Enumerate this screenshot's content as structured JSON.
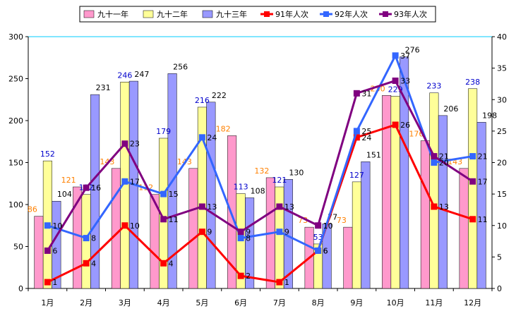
{
  "chart_data": {
    "type": "bar",
    "categories": [
      "1月",
      "2月",
      "3月",
      "4月",
      "5月",
      "6月",
      "7月",
      "8月",
      "9月",
      "10月",
      "11月",
      "12月"
    ],
    "ylim": [
      0,
      300
    ],
    "yticks": [
      0,
      50,
      100,
      150,
      200,
      250,
      300
    ],
    "y2lim": [
      0,
      40
    ],
    "y2ticks": [
      0,
      5,
      10,
      15,
      20,
      25,
      30,
      35,
      40
    ],
    "legend_position": "top",
    "grid": false,
    "bar_series": [
      {
        "name": "九十一年",
        "color": "#ff99cc",
        "label_color": "#ff8000",
        "values": [
          86,
          121,
          143,
          112,
          143,
          182,
          132,
          73,
          73,
          230,
          176,
          143
        ]
      },
      {
        "name": "九十二年",
        "color": "#ffff99",
        "label_color": "#0000cc",
        "values": [
          152,
          112,
          246,
          179,
          216,
          113,
          121,
          53,
          127,
          229,
          233,
          238
        ]
      },
      {
        "name": "九十三年",
        "color": "#9999ff",
        "label_color": "#000000",
        "values": [
          104,
          231,
          247,
          256,
          222,
          108,
          130,
          77,
          151,
          276,
          206,
          198
        ]
      }
    ],
    "line_series": [
      {
        "name": "91年人次",
        "color": "#ff0000",
        "values": [
          1,
          4,
          10,
          4,
          9,
          2,
          1,
          6,
          24,
          26,
          13,
          11
        ]
      },
      {
        "name": "92年人次",
        "color": "#3366ff",
        "values": [
          10,
          8,
          17,
          15,
          24,
          8,
          9,
          6,
          25,
          37,
          20,
          21
        ]
      },
      {
        "name": "93年人次",
        "color": "#800080",
        "values": [
          6,
          16,
          23,
          11,
          13,
          9,
          13,
          10,
          31,
          33,
          21,
          17
        ]
      }
    ]
  }
}
